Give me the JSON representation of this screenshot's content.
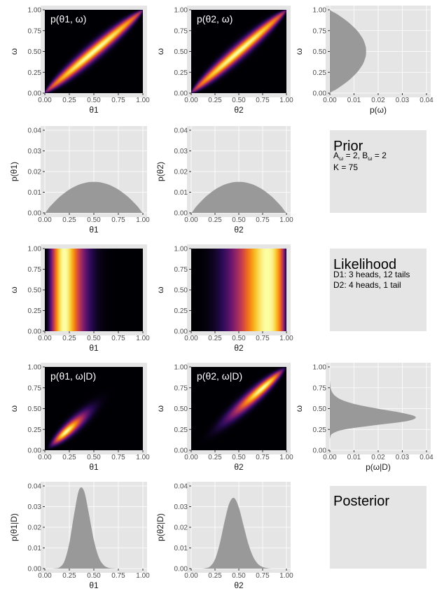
{
  "colors": {
    "panel_bg": "#e5e5e5",
    "density_fill": "#999999",
    "gridline": "#ffffff",
    "heatmap_palette": "inferno"
  },
  "chart_data": [
    {
      "id": "joint-prior-theta1-omega",
      "type": "heatmap",
      "overlay_text": "p(θ1, ω)",
      "xlabel": "θ1",
      "ylabel": "ω",
      "xlim": [
        0,
        1
      ],
      "ylim": [
        0,
        1
      ],
      "xticks": [
        "0.00",
        "0.25",
        "0.50",
        "0.75",
        "1.00"
      ],
      "yticks": [
        "0.00",
        "0.25",
        "0.50",
        "0.75",
        "1.00"
      ],
      "density": "prior",
      "data_param": "t1"
    },
    {
      "id": "joint-prior-theta2-omega",
      "type": "heatmap",
      "overlay_text": "p(θ2, ω)",
      "xlabel": "θ2",
      "ylabel": "ω",
      "xlim": [
        0,
        1
      ],
      "ylim": [
        0,
        1
      ],
      "xticks": [
        "0.00",
        "0.25",
        "0.50",
        "0.75",
        "1.00"
      ],
      "yticks": [
        "0.00",
        "0.25",
        "0.50",
        "0.75",
        "1.00"
      ],
      "density": "prior",
      "data_param": "t2"
    },
    {
      "id": "marginal-prior-omega",
      "type": "area",
      "orientation": "horizontal",
      "xlabel": "p(ω)",
      "ylabel": "ω",
      "xlim": [
        0,
        0.04
      ],
      "ylim": [
        0,
        1
      ],
      "xticks": [
        "0.00",
        "0.01",
        "0.02",
        "0.03",
        "0.04"
      ],
      "yticks": [
        "0.00",
        "0.25",
        "0.50",
        "0.75",
        "1.00"
      ],
      "x": [
        0,
        0.05,
        0.1,
        0.15,
        0.2,
        0.25,
        0.3,
        0.35,
        0.4,
        0.45,
        0.5,
        0.55,
        0.6,
        0.65,
        0.7,
        0.75,
        0.8,
        0.85,
        0.9,
        0.95,
        1
      ],
      "values": [
        0,
        0.0029,
        0.0054,
        0.0077,
        0.0096,
        0.0113,
        0.0126,
        0.0137,
        0.0144,
        0.0149,
        0.015,
        0.0149,
        0.0144,
        0.0137,
        0.0126,
        0.0113,
        0.0096,
        0.0077,
        0.0054,
        0.0029,
        0
      ]
    },
    {
      "id": "marginal-prior-theta1",
      "type": "area",
      "xlabel": "θ1",
      "ylabel": "p(θ1)",
      "xlim": [
        0,
        1
      ],
      "ylim": [
        0,
        0.04
      ],
      "xticks": [
        "0.00",
        "0.25",
        "0.50",
        "0.75",
        "1.00"
      ],
      "yticks": [
        "0.00",
        "0.01",
        "0.02",
        "0.03",
        "0.04"
      ],
      "x": [
        0,
        0.05,
        0.1,
        0.15,
        0.2,
        0.25,
        0.3,
        0.35,
        0.4,
        0.45,
        0.5,
        0.55,
        0.6,
        0.65,
        0.7,
        0.75,
        0.8,
        0.85,
        0.9,
        0.95,
        1
      ],
      "values": [
        0,
        0.0029,
        0.0054,
        0.0077,
        0.0096,
        0.0113,
        0.0126,
        0.0137,
        0.0144,
        0.0149,
        0.015,
        0.0149,
        0.0144,
        0.0137,
        0.0126,
        0.0113,
        0.0096,
        0.0077,
        0.0054,
        0.0029,
        0
      ]
    },
    {
      "id": "marginal-prior-theta2",
      "type": "area",
      "xlabel": "θ2",
      "ylabel": "p(θ2)",
      "xlim": [
        0,
        1
      ],
      "ylim": [
        0,
        0.04
      ],
      "xticks": [
        "0.00",
        "0.25",
        "0.50",
        "0.75",
        "1.00"
      ],
      "yticks": [
        "0.00",
        "0.01",
        "0.02",
        "0.03",
        "0.04"
      ],
      "x": [
        0,
        0.05,
        0.1,
        0.15,
        0.2,
        0.25,
        0.3,
        0.35,
        0.4,
        0.45,
        0.5,
        0.55,
        0.6,
        0.65,
        0.7,
        0.75,
        0.8,
        0.85,
        0.9,
        0.95,
        1
      ],
      "values": [
        0,
        0.0029,
        0.0054,
        0.0077,
        0.0096,
        0.0113,
        0.0126,
        0.0137,
        0.0144,
        0.0149,
        0.015,
        0.0149,
        0.0144,
        0.0137,
        0.0126,
        0.0113,
        0.0096,
        0.0077,
        0.0054,
        0.0029,
        0
      ]
    },
    {
      "id": "likelihood-theta1-omega",
      "type": "heatmap",
      "overlay_text": "",
      "xlabel": "θ1",
      "ylabel": "ω",
      "xlim": [
        0,
        1
      ],
      "ylim": [
        0,
        1
      ],
      "xticks": [
        "0.00",
        "0.25",
        "0.50",
        "0.75",
        "1.00"
      ],
      "yticks": [
        "0.00",
        "0.25",
        "0.50",
        "0.75",
        "1.00"
      ],
      "density": "likelihood",
      "data_param": "t1"
    },
    {
      "id": "likelihood-theta2-omega",
      "type": "heatmap",
      "overlay_text": "",
      "xlabel": "θ2",
      "ylabel": "ω",
      "xlim": [
        0,
        1
      ],
      "ylim": [
        0,
        1
      ],
      "xticks": [
        "0.00",
        "0.25",
        "0.50",
        "0.75",
        "1.00"
      ],
      "yticks": [
        "0.00",
        "0.25",
        "0.50",
        "0.75",
        "1.00"
      ],
      "density": "likelihood",
      "data_param": "t2"
    },
    {
      "id": "joint-posterior-theta1-omega",
      "type": "heatmap",
      "overlay_text": "p(θ1, ω|D)",
      "xlabel": "θ1",
      "ylabel": "ω",
      "xlim": [
        0,
        1
      ],
      "ylim": [
        0,
        1
      ],
      "xticks": [
        "0.00",
        "0.25",
        "0.50",
        "0.75",
        "1.00"
      ],
      "yticks": [
        "0.00",
        "0.25",
        "0.50",
        "0.75",
        "1.00"
      ],
      "density": "posterior",
      "data_param": "t1"
    },
    {
      "id": "joint-posterior-theta2-omega",
      "type": "heatmap",
      "overlay_text": "p(θ2, ω|D)",
      "xlabel": "θ2",
      "ylabel": "ω",
      "xlim": [
        0,
        1
      ],
      "ylim": [
        0,
        1
      ],
      "xticks": [
        "0.00",
        "0.25",
        "0.50",
        "0.75",
        "1.00"
      ],
      "yticks": [
        "0.00",
        "0.25",
        "0.50",
        "0.75",
        "1.00"
      ],
      "density": "posterior",
      "data_param": "t2"
    },
    {
      "id": "marginal-posterior-omega",
      "type": "area",
      "orientation": "horizontal",
      "xlabel": "p(ω|D)",
      "ylabel": "ω",
      "xlim": [
        0,
        0.04
      ],
      "ylim": [
        0,
        1
      ],
      "xticks": [
        "0.00",
        "0.01",
        "0.02",
        "0.03",
        "0.04"
      ],
      "yticks": [
        "0.00",
        "0.25",
        "0.50",
        "0.75",
        "1.00"
      ],
      "x": [
        0,
        0.05,
        0.1,
        0.15,
        0.2,
        0.25,
        0.3,
        0.35,
        0.4,
        0.45,
        0.5,
        0.55,
        0.6,
        0.65,
        0.7,
        0.75,
        0.8,
        0.85,
        0.9,
        0.95,
        1
      ],
      "values": [
        0,
        0,
        0,
        0.0001,
        0.0011,
        0.0061,
        0.0185,
        0.0319,
        0.0355,
        0.0296,
        0.0196,
        0.0109,
        0.0053,
        0.0023,
        0.0009,
        0.0003,
        0.0001,
        0,
        0,
        0,
        0
      ]
    },
    {
      "id": "marginal-posterior-theta1",
      "type": "area",
      "xlabel": "θ1",
      "ylabel": "p(θ1|D)",
      "xlim": [
        0,
        1
      ],
      "ylim": [
        0,
        0.04
      ],
      "xticks": [
        "0.00",
        "0.25",
        "0.50",
        "0.75",
        "1.00"
      ],
      "yticks": [
        "0.00",
        "0.01",
        "0.02",
        "0.03",
        "0.04"
      ],
      "x": [
        0,
        0.05,
        0.1,
        0.15,
        0.2,
        0.25,
        0.3,
        0.35,
        0.4,
        0.45,
        0.5,
        0.55,
        0.6,
        0.65,
        0.7,
        0.75,
        0.8,
        0.85,
        0.9,
        0.95,
        1
      ],
      "values": [
        0,
        0,
        0.0001,
        0.0006,
        0.0036,
        0.0124,
        0.0267,
        0.0382,
        0.0376,
        0.0264,
        0.0138,
        0.0055,
        0.0017,
        0.0004,
        0.0001,
        0,
        0,
        0,
        0,
        0,
        0
      ]
    },
    {
      "id": "marginal-posterior-theta2",
      "type": "area",
      "xlabel": "θ2",
      "ylabel": "p(θ2|D)",
      "xlim": [
        0,
        1
      ],
      "ylim": [
        0,
        0.04
      ],
      "xticks": [
        "0.00",
        "0.25",
        "0.50",
        "0.75",
        "1.00"
      ],
      "yticks": [
        "0.00",
        "0.01",
        "0.02",
        "0.03",
        "0.04"
      ],
      "x": [
        0,
        0.05,
        0.1,
        0.15,
        0.2,
        0.25,
        0.3,
        0.35,
        0.4,
        0.45,
        0.5,
        0.55,
        0.6,
        0.65,
        0.7,
        0.75,
        0.8,
        0.85,
        0.9,
        0.95,
        1
      ],
      "values": [
        0,
        0,
        0,
        0.0002,
        0.0011,
        0.0045,
        0.0121,
        0.0227,
        0.0316,
        0.0342,
        0.0296,
        0.0208,
        0.012,
        0.0058,
        0.0023,
        0.0008,
        0.0002,
        0,
        0,
        0,
        0
      ]
    }
  ],
  "text_panels": {
    "prior": {
      "title": "Prior",
      "line1_a": "A",
      "line1_a_sub": "ω",
      "line1_b": " = 2, B",
      "line1_b_sub": "ω",
      "line1_c": " = 2",
      "line2": "K = 75"
    },
    "likelihood": {
      "title": "Likelihood",
      "line1": "D1: 3 heads, 12 tails",
      "line2": "D2: 4 heads, 1 tail"
    },
    "posterior": {
      "title": "Posterior"
    }
  }
}
